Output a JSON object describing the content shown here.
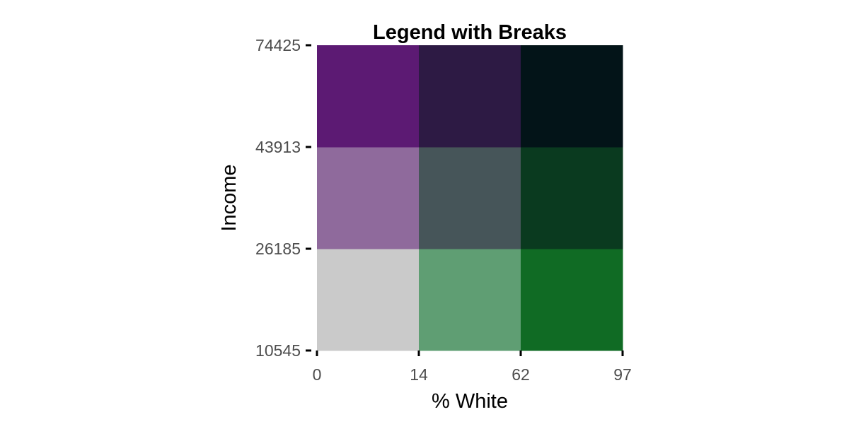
{
  "chart_data": {
    "type": "heatmap",
    "title": "Legend with Breaks",
    "xlabel": "% White",
    "ylabel": "Income",
    "x_breaks": [
      0,
      14,
      62,
      97
    ],
    "y_breaks": [
      10545,
      26185,
      43913,
      74425
    ],
    "x_tick_labels": [
      "0",
      "14",
      "62",
      "97"
    ],
    "y_tick_labels": [
      "10545",
      "26185",
      "43913",
      "74425"
    ],
    "grid": false,
    "cells": [
      {
        "col": 0,
        "row": 0,
        "color": "#cacaca"
      },
      {
        "col": 1,
        "row": 0,
        "color": "#5f9e73"
      },
      {
        "col": 2,
        "row": 0,
        "color": "#106b24"
      },
      {
        "col": 0,
        "row": 1,
        "color": "#8f6a9c"
      },
      {
        "col": 1,
        "row": 1,
        "color": "#465559"
      },
      {
        "col": 2,
        "row": 1,
        "color": "#0a3a1f"
      },
      {
        "col": 0,
        "row": 2,
        "color": "#5c1a73"
      },
      {
        "col": 1,
        "row": 2,
        "color": "#2d1a44"
      },
      {
        "col": 2,
        "row": 2,
        "color": "#031418"
      }
    ]
  }
}
